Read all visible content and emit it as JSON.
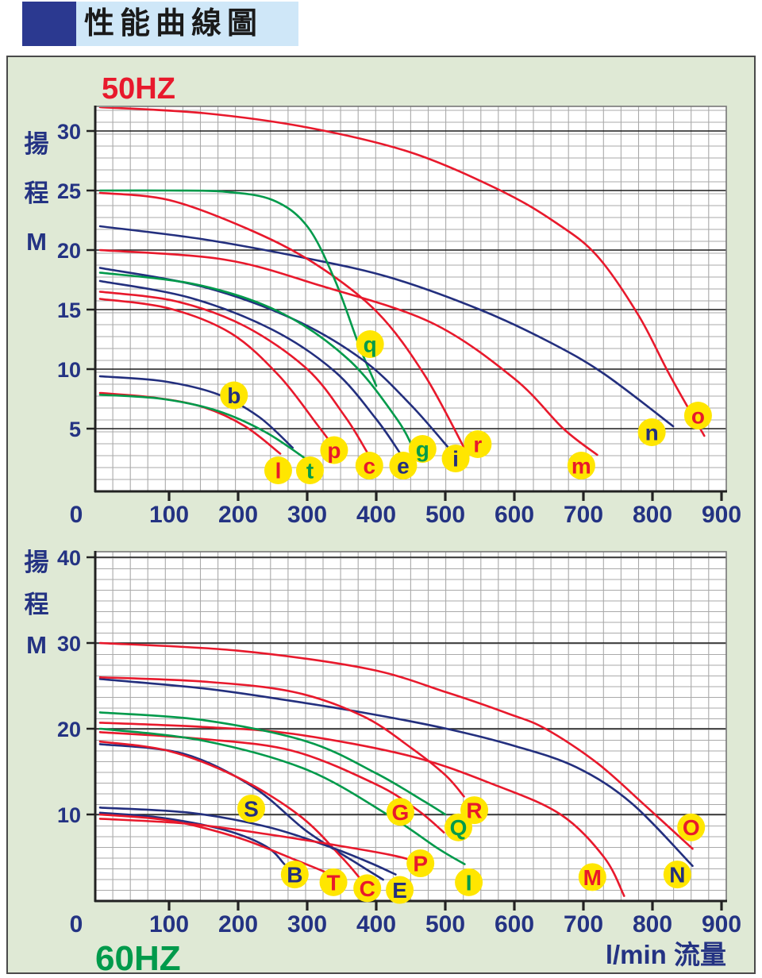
{
  "title_bar": {
    "title": "性能曲線圖"
  },
  "colors": {
    "red": "#e8192c",
    "blue": "#232f7e",
    "green": "#009a4b",
    "label_bg": "#ffe600",
    "panel_bg": "#dfe9d5",
    "panel_border": "#4a4a4a",
    "plot_bg": "#ffffff",
    "grid_minor": "#aaaaaa",
    "grid_major": "#1c1c1c",
    "axis_line": "#222222",
    "axis_text": "#243383",
    "title_text": "#1a1a1a",
    "titlebar_bg": "#cfe7f8",
    "titlebar_square": "#2b3990"
  },
  "chart_data": [
    {
      "type": "line",
      "title": "50HZ",
      "title_color": "red",
      "y_axis": {
        "label_chars": [
          "揚",
          "程",
          "M"
        ],
        "ticks": [
          30,
          25,
          20,
          15,
          10,
          5
        ],
        "range": [
          0,
          32.3
        ],
        "grid": true
      },
      "x_axis": {
        "label": "",
        "ticks": [
          0,
          100,
          200,
          300,
          400,
          500,
          600,
          700,
          800,
          900
        ],
        "range": [
          0,
          908
        ],
        "grid": true
      },
      "legend_position": "on-curve-badges",
      "series": [
        {
          "label": "o",
          "color": "red",
          "label_at": [
            866,
            6.1
          ],
          "points": [
            [
              0,
              32
            ],
            [
              150,
              31.5
            ],
            [
              300,
              30.3
            ],
            [
              450,
              28.2
            ],
            [
              580,
              25
            ],
            [
              660,
              22.3
            ],
            [
              720,
              19.5
            ],
            [
              780,
              14.5
            ],
            [
              825,
              9.5
            ],
            [
              875,
              4.4
            ]
          ]
        },
        {
          "label": "n",
          "color": "blue",
          "label_at": [
            799,
            4.7
          ],
          "points": [
            [
              0,
              22
            ],
            [
              150,
              20.9
            ],
            [
              300,
              19.3
            ],
            [
              420,
              17.7
            ],
            [
              550,
              15
            ],
            [
              650,
              12.3
            ],
            [
              730,
              9.6
            ],
            [
              830,
              5.2
            ]
          ]
        },
        {
          "label": "r",
          "color": "red",
          "label_at": [
            547,
            3.7
          ],
          "points": [
            [
              0,
              24.8
            ],
            [
              100,
              24.2
            ],
            [
              213,
              21.8
            ],
            [
              310,
              18.9
            ],
            [
              401,
              14.8
            ],
            [
              470,
              9.5
            ],
            [
              529,
              3.2
            ]
          ]
        },
        {
          "label": "q",
          "color": "green",
          "label_at": [
            391,
            12.1
          ],
          "points": [
            [
              0,
              25
            ],
            [
              100,
              25
            ],
            [
              180,
              24.9
            ],
            [
              250,
              24.2
            ],
            [
              300,
              22
            ],
            [
              340,
              17.5
            ],
            [
              375,
              12
            ],
            [
              400,
              8.6
            ]
          ]
        },
        {
          "label": "m",
          "color": "red",
          "label_at": [
            697,
            1.9
          ],
          "points": [
            [
              0,
              20
            ],
            [
              180,
              19.2
            ],
            [
              320,
              17
            ],
            [
              480,
              13.9
            ],
            [
              600,
              9.2
            ],
            [
              671,
              5.0
            ],
            [
              720,
              2.8
            ]
          ]
        },
        {
          "label": "i",
          "color": "blue",
          "label_at": [
            515,
            2.5
          ],
          "points": [
            [
              0,
              18.5
            ],
            [
              150,
              16.9
            ],
            [
              280,
              14.2
            ],
            [
              380,
              10.8
            ],
            [
              450,
              7
            ],
            [
              509,
              3.1
            ]
          ]
        },
        {
          "label": "g",
          "color": "green",
          "label_at": [
            467,
            3.3
          ],
          "points": [
            [
              0,
              18.1
            ],
            [
              140,
              17.1
            ],
            [
              260,
              14.8
            ],
            [
              360,
              10.8
            ],
            [
              430,
              5.8
            ],
            [
              456,
              3.0
            ]
          ]
        },
        {
          "label": "e",
          "color": "blue",
          "label_at": [
            439,
            1.9
          ],
          "points": [
            [
              0,
              17.4
            ],
            [
              130,
              16.0
            ],
            [
              250,
              13.3
            ],
            [
              340,
              9.8
            ],
            [
              400,
              5.8
            ],
            [
              435,
              2.9
            ]
          ]
        },
        {
          "label": "c",
          "color": "red",
          "label_at": [
            390,
            1.9
          ],
          "points": [
            [
              0,
              16.5
            ],
            [
              110,
              15.7
            ],
            [
              210,
              13.6
            ],
            [
              300,
              10
            ],
            [
              355,
              6
            ],
            [
              387,
              3.0
            ]
          ]
        },
        {
          "label": "p",
          "color": "red",
          "label_at": [
            339,
            3.2
          ],
          "points": [
            [
              0,
              15.9
            ],
            [
              100,
              15.1
            ],
            [
              190,
              13
            ],
            [
              260,
              9.4
            ],
            [
              315,
              5.3
            ],
            [
              341,
              3.3
            ]
          ]
        },
        {
          "label": "b",
          "color": "blue",
          "label_at": [
            194,
            7.8
          ],
          "points": [
            [
              0,
              9.4
            ],
            [
              90,
              9.0
            ],
            [
              170,
              7.9
            ],
            [
              230,
              6.0
            ],
            [
              279,
              3.4
            ]
          ]
        },
        {
          "label": "l",
          "color": "red",
          "label_at": [
            258,
            1.5
          ],
          "points": [
            [
              0,
              8.0
            ],
            [
              80,
              7.6
            ],
            [
              150,
              6.8
            ],
            [
              210,
              5.2
            ],
            [
              261,
              2.9
            ]
          ]
        },
        {
          "label": "t",
          "color": "green",
          "label_at": [
            304,
            1.5
          ],
          "points": [
            [
              0,
              7.85
            ],
            [
              90,
              7.5
            ],
            [
              170,
              6.5
            ],
            [
              240,
              4.7
            ],
            [
              302,
              2.3
            ]
          ]
        }
      ]
    },
    {
      "type": "line",
      "title": "60HZ",
      "title_color": "green",
      "y_axis": {
        "label_chars": [
          "揚",
          "程",
          "M"
        ],
        "ticks": [
          40,
          30,
          20,
          10
        ],
        "range": [
          0,
          40.7
        ],
        "grid": true
      },
      "x_axis": {
        "label": "l/min 流量",
        "ticks": [
          0,
          100,
          200,
          300,
          400,
          500,
          600,
          700,
          800,
          900
        ],
        "range": [
          0,
          908
        ],
        "grid": true
      },
      "legend_position": "on-curve-badges",
      "series": [
        {
          "label": "O",
          "color": "red",
          "label_at": [
            856,
            8.5
          ],
          "points": [
            [
              0,
              30
            ],
            [
              200,
              29.1
            ],
            [
              387,
              27
            ],
            [
              500,
              24.3
            ],
            [
              590,
              21.8
            ],
            [
              645,
              20
            ],
            [
              720,
              16
            ],
            [
              790,
              11
            ],
            [
              858,
              6
            ]
          ]
        },
        {
          "label": "N",
          "color": "blue",
          "label_at": [
            836,
            3.0
          ],
          "points": [
            [
              0,
              25.8
            ],
            [
              150,
              24.7
            ],
            [
              265,
              23.4
            ],
            [
              380,
              21.9
            ],
            [
              496,
              20.1
            ],
            [
              600,
              18
            ],
            [
              690,
              15.5
            ],
            [
              770,
              11.3
            ],
            [
              858,
              4.0
            ]
          ]
        },
        {
          "label": "R",
          "color": "red",
          "label_at": [
            542,
            10.5
          ],
          "points": [
            [
              0,
              26
            ],
            [
              150,
              25.5
            ],
            [
              280,
              24.3
            ],
            [
              380,
              21.5
            ],
            [
              450,
              17.8
            ],
            [
              500,
              14.6
            ],
            [
              527,
              12.1
            ]
          ]
        },
        {
          "label": "M",
          "color": "red",
          "label_at": [
            713,
            2.7
          ],
          "points": [
            [
              0,
              20.7
            ],
            [
              150,
              20.2
            ],
            [
              280,
              19.4
            ],
            [
              450,
              16.8
            ],
            [
              570,
              13.5
            ],
            [
              667,
              10
            ],
            [
              730,
              5
            ],
            [
              759,
              0.5
            ]
          ]
        },
        {
          "label": "G",
          "color": "red",
          "label_at": [
            435,
            10.3
          ],
          "points": [
            [
              0,
              19.6
            ],
            [
              150,
              18.8
            ],
            [
              280,
              17.4
            ],
            [
              400,
              13.5
            ],
            [
              460,
              10.5
            ],
            [
              498,
              7.9
            ]
          ]
        },
        {
          "label": "Q",
          "color": "green",
          "label_at": [
            519,
            8.5
          ],
          "points": [
            [
              0,
              21.9
            ],
            [
              150,
              21.0
            ],
            [
              300,
              18.5
            ],
            [
              400,
              14.8
            ],
            [
              470,
              11.5
            ],
            [
              500,
              10
            ]
          ]
        },
        {
          "label": "I",
          "color": "green",
          "label_at": [
            534,
            2.1
          ],
          "points": [
            [
              0,
              20.0
            ],
            [
              150,
              18.6
            ],
            [
              300,
              15.2
            ],
            [
              420,
              9.8
            ],
            [
              490,
              6
            ],
            [
              528,
              4.2
            ]
          ]
        },
        {
          "label": "E",
          "color": "blue",
          "label_at": [
            434,
            1.2
          ],
          "points": [
            [
              0,
              18.2
            ],
            [
              120,
              17.1
            ],
            [
              220,
              13.3
            ],
            [
              300,
              8
            ],
            [
              370,
              4.4
            ],
            [
              410,
              2.4
            ]
          ]
        },
        {
          "label": "C",
          "color": "red",
          "label_at": [
            387,
            1.4
          ],
          "points": [
            [
              0,
              18.5
            ],
            [
              100,
              17.4
            ],
            [
              200,
              14.3
            ],
            [
              290,
              9.8
            ],
            [
              350,
              5.0
            ],
            [
              378,
              2.4
            ]
          ]
        },
        {
          "label": "S",
          "color": "blue",
          "label_at": [
            219,
            10.7
          ],
          "points": [
            [
              0,
              10.8
            ],
            [
              130,
              10.2
            ],
            [
              240,
              8.6
            ],
            [
              330,
              6.3
            ],
            [
              390,
              4.4
            ],
            [
              428,
              3.0
            ]
          ]
        },
        {
          "label": "B",
          "color": "blue",
          "label_at": [
            282,
            3.0
          ],
          "points": [
            [
              0,
              10.2
            ],
            [
              90,
              9.6
            ],
            [
              180,
              8.2
            ],
            [
              240,
              6.3
            ],
            [
              267,
              4.2
            ]
          ]
        },
        {
          "label": "T",
          "color": "red",
          "label_at": [
            338,
            2.1
          ],
          "points": [
            [
              0,
              10.0
            ],
            [
              100,
              9.3
            ],
            [
              200,
              7.3
            ],
            [
              280,
              4.8
            ],
            [
              338,
              2.9
            ]
          ]
        },
        {
          "label": "P",
          "color": "red",
          "label_at": [
            464,
            4.3
          ],
          "points": [
            [
              0,
              9.5
            ],
            [
              130,
              8.9
            ],
            [
              250,
              7.6
            ],
            [
              350,
              6.3
            ],
            [
              420,
              5.3
            ],
            [
              455,
              4.6
            ]
          ]
        }
      ]
    }
  ]
}
